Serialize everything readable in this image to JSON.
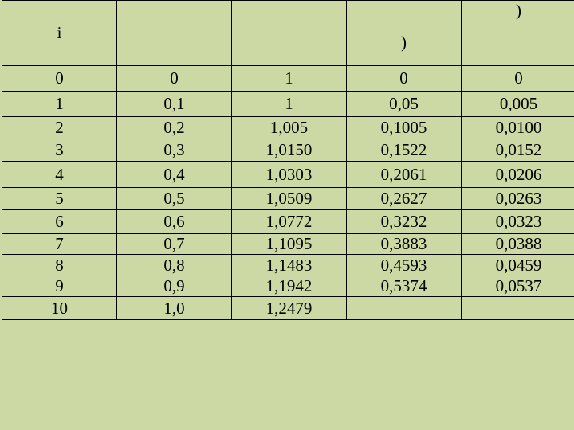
{
  "header": [
    "i",
    "",
    "",
    ")",
    ")"
  ],
  "rows": [
    [
      "0",
      "0",
      "1",
      "0",
      "0"
    ],
    [
      "1",
      "0,1",
      "1",
      "0,05",
      "0,005"
    ],
    [
      "2",
      "0,2",
      "1,005",
      "0,1005",
      "0,0100"
    ],
    [
      "3",
      "0,3",
      "1,0150",
      "0,1522",
      "0,0152"
    ],
    [
      "4",
      "0,4",
      "1,0303",
      "0,2061",
      "0,0206"
    ],
    [
      "5",
      "0,5",
      "1,0509",
      "0,2627",
      "0,0263"
    ],
    [
      "6",
      "0,6",
      "1,0772",
      "0,3232",
      "0,0323"
    ],
    [
      "7",
      "0,7",
      "1,1095",
      "0,3883",
      "0,0388"
    ],
    [
      "8",
      "0,8",
      "1,1483",
      "0,4593",
      "0,0459"
    ],
    [
      "9",
      "0,9",
      "1,1942",
      "0,5374",
      "0,0537"
    ],
    [
      "10",
      "1,0",
      "1,2479",
      "",
      ""
    ]
  ],
  "colors": {
    "background": "#cdd9a5",
    "border": "#000000"
  }
}
